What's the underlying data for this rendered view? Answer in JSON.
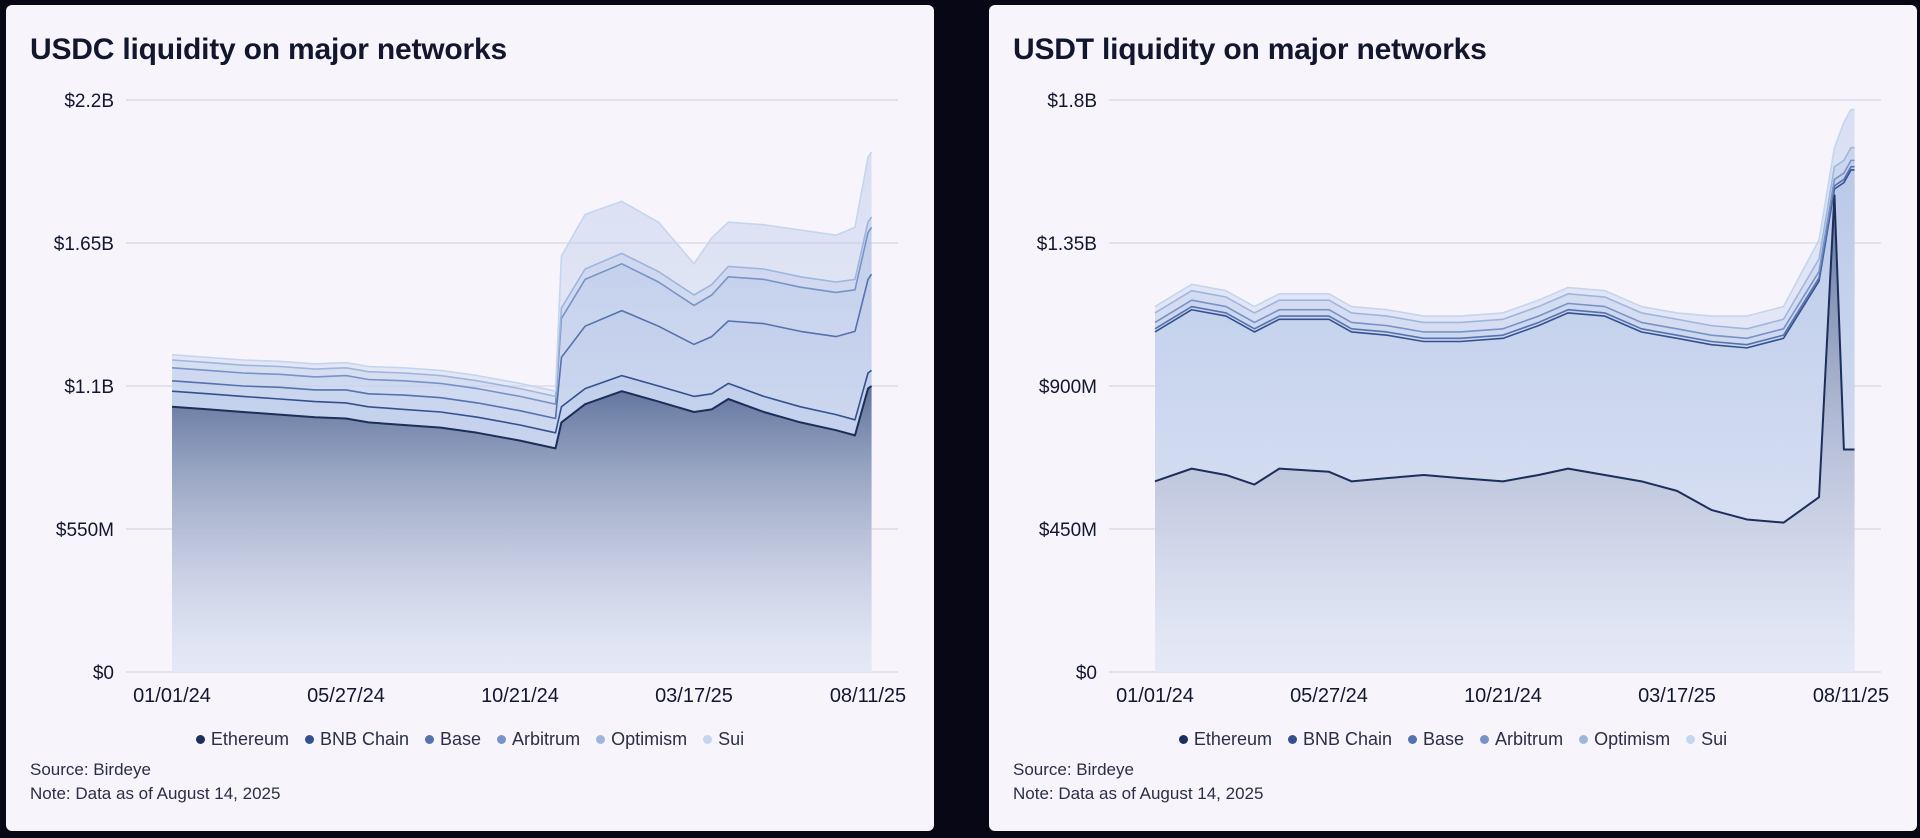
{
  "series_names": [
    "Ethereum",
    "BNB Chain",
    "Base",
    "Arbitrum",
    "Optimism",
    "Sui"
  ],
  "series_colors": [
    "#1c2e59",
    "#34508f",
    "#5572ae",
    "#7893c7",
    "#9fb6dc",
    "#c4d6ee"
  ],
  "source": "Source: Birdeye",
  "note": "Note: Data as of August 14, 2025",
  "chart_data": [
    {
      "type": "area",
      "stacked": true,
      "title": "USDC liquidity on major networks",
      "x_ticks": [
        "01/01/24",
        "05/27/24",
        "10/21/24",
        "03/17/25",
        "08/11/25"
      ],
      "y_ticks": [
        "$0",
        "$550M",
        "$1.1B",
        "$1.65B",
        "$2.2B"
      ],
      "ylim": [
        0,
        2200
      ],
      "y_unit": "$M",
      "grid": true,
      "legend_position": "bottom",
      "x": [
        "01/01/24",
        "02/01/24",
        "03/01/24",
        "04/01/24",
        "05/01/24",
        "05/27/24",
        "06/15/24",
        "07/15/24",
        "08/15/24",
        "09/15/24",
        "10/21/24",
        "11/20/24",
        "11/25/24",
        "12/15/24",
        "01/15/25",
        "02/15/25",
        "03/17/25",
        "04/01/25",
        "04/15/25",
        "05/15/25",
        "06/15/25",
        "07/15/25",
        "07/31/25",
        "08/11/25",
        "08/14/25"
      ],
      "series": [
        {
          "name": "Ethereum",
          "values": [
            1020,
            1010,
            1000,
            990,
            980,
            975,
            960,
            950,
            940,
            920,
            890,
            860,
            960,
            1030,
            1080,
            1040,
            1000,
            1010,
            1050,
            1000,
            960,
            930,
            910,
            1090,
            1100
          ]
        },
        {
          "name": "BNB Chain",
          "values": [
            60,
            60,
            60,
            60,
            60,
            60,
            60,
            60,
            60,
            60,
            60,
            60,
            60,
            60,
            60,
            60,
            60,
            60,
            60,
            60,
            60,
            60,
            60,
            60,
            60
          ]
        },
        {
          "name": "Base",
          "values": [
            40,
            40,
            40,
            45,
            45,
            50,
            50,
            55,
            55,
            55,
            55,
            55,
            190,
            240,
            250,
            230,
            200,
            220,
            240,
            280,
            290,
            300,
            340,
            360,
            370
          ]
        },
        {
          "name": "Arbitrum",
          "values": [
            50,
            50,
            50,
            50,
            50,
            55,
            55,
            55,
            55,
            55,
            55,
            55,
            150,
            180,
            180,
            170,
            150,
            160,
            170,
            170,
            170,
            170,
            160,
            180,
            180
          ]
        },
        {
          "name": "Optimism",
          "values": [
            30,
            30,
            30,
            30,
            30,
            30,
            30,
            30,
            30,
            30,
            30,
            30,
            40,
            40,
            40,
            40,
            40,
            40,
            40,
            40,
            40,
            40,
            40,
            40,
            40
          ]
        },
        {
          "name": "Sui",
          "values": [
            20,
            20,
            20,
            20,
            20,
            20,
            20,
            20,
            20,
            20,
            20,
            20,
            200,
            210,
            200,
            190,
            120,
            180,
            170,
            170,
            180,
            180,
            200,
            250,
            250
          ]
        }
      ]
    },
    {
      "type": "area",
      "stacked": true,
      "title": "USDT liquidity on major networks",
      "x_ticks": [
        "01/01/24",
        "05/27/24",
        "10/21/24",
        "03/17/25",
        "08/11/25"
      ],
      "y_ticks": [
        "$0",
        "$450M",
        "$900M",
        "$1.35B",
        "$1.8B"
      ],
      "ylim": [
        0,
        1800
      ],
      "y_unit": "$M",
      "grid": true,
      "legend_position": "bottom",
      "x": [
        "01/01/24",
        "02/01/24",
        "03/01/24",
        "03/25/24",
        "04/15/24",
        "05/27/24",
        "06/15/24",
        "07/15/24",
        "08/15/24",
        "09/15/24",
        "10/21/24",
        "11/20/24",
        "12/15/24",
        "01/15/25",
        "02/15/25",
        "03/17/25",
        "04/15/25",
        "05/15/25",
        "06/15/25",
        "07/15/25",
        "07/28/25",
        "08/05/25",
        "08/11/25",
        "08/14/25"
      ],
      "series": [
        {
          "name": "Ethereum",
          "values": [
            600,
            640,
            620,
            590,
            640,
            630,
            600,
            610,
            620,
            610,
            600,
            620,
            640,
            620,
            600,
            570,
            510,
            480,
            470,
            550,
            1500,
            700,
            700,
            700
          ]
        },
        {
          "name": "BNB Chain",
          "values": [
            470,
            500,
            500,
            480,
            470,
            480,
            470,
            450,
            420,
            430,
            450,
            470,
            490,
            500,
            470,
            480,
            520,
            540,
            580,
            680,
            20,
            840,
            880,
            880
          ]
        },
        {
          "name": "Base",
          "values": [
            10,
            10,
            10,
            10,
            10,
            10,
            10,
            10,
            10,
            10,
            10,
            10,
            10,
            10,
            10,
            10,
            10,
            10,
            10,
            10,
            10,
            10,
            10,
            10
          ]
        },
        {
          "name": "Arbitrum",
          "values": [
            20,
            20,
            20,
            20,
            20,
            20,
            20,
            20,
            20,
            20,
            20,
            20,
            20,
            20,
            20,
            20,
            20,
            20,
            20,
            20,
            20,
            20,
            20,
            20
          ]
        },
        {
          "name": "Optimism",
          "values": [
            30,
            30,
            30,
            30,
            30,
            30,
            30,
            30,
            30,
            30,
            30,
            30,
            30,
            30,
            30,
            30,
            30,
            30,
            30,
            40,
            40,
            40,
            40,
            40
          ]
        },
        {
          "name": "Sui",
          "values": [
            20,
            20,
            20,
            20,
            20,
            20,
            20,
            20,
            20,
            20,
            20,
            20,
            20,
            20,
            20,
            20,
            30,
            40,
            40,
            60,
            60,
            120,
            120,
            120
          ]
        }
      ]
    }
  ]
}
